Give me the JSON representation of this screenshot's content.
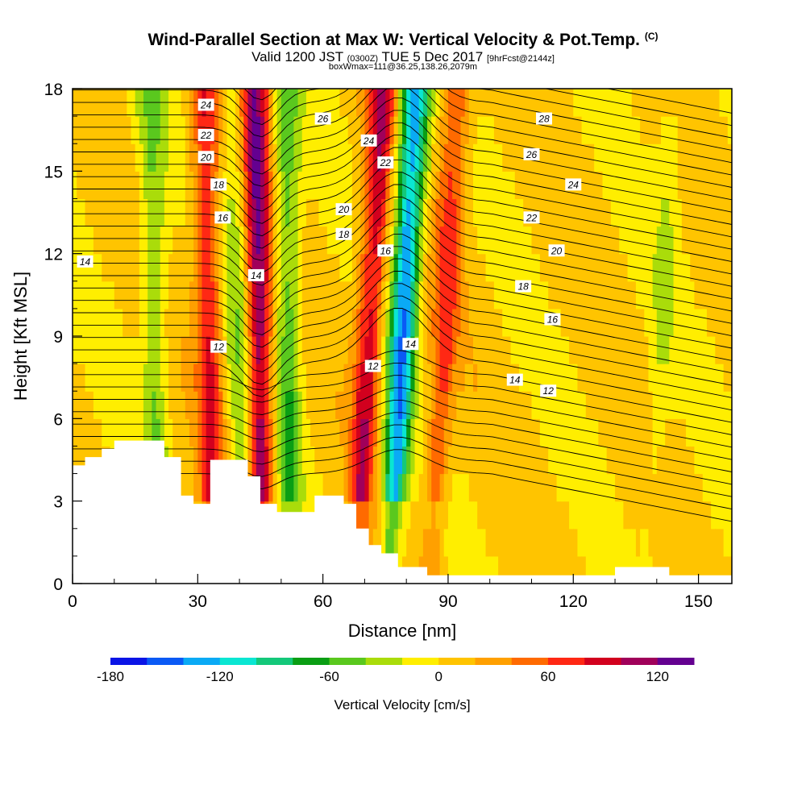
{
  "header": {
    "title": "Wind-Parallel Section at Max W: Vertical Velocity & Pot.Temp.",
    "copyright": "(C)",
    "subtitle_prefix": "Valid 1200 JST",
    "subtitle_utc": "(0300Z)",
    "subtitle_main": "TUE 5 Dec 2017",
    "subtitle_fcst": "[9hrFcst@2144z]",
    "subtitle2": "boxWmax=111@36.25,138.26,2079m"
  },
  "colorbar": {
    "label": "Vertical Velocity [cm/s]",
    "ticks": [
      {
        "value": -180,
        "label": "-180"
      },
      {
        "value": -120,
        "label": "-120"
      },
      {
        "value": -60,
        "label": "-60"
      },
      {
        "value": 0,
        "label": "0"
      },
      {
        "value": 60,
        "label": "60"
      },
      {
        "value": 120,
        "label": "120"
      }
    ],
    "levels": [
      -180,
      -160,
      -140,
      -120,
      -100,
      -80,
      -60,
      -40,
      -20,
      0,
      20,
      40,
      60,
      80,
      100,
      120,
      140
    ],
    "colors": [
      "#0a14e6",
      "#0a5af5",
      "#0aaaf5",
      "#0ae6d2",
      "#14c87a",
      "#0a9e14",
      "#5ac81e",
      "#aadc0a",
      "#ffee00",
      "#ffc400",
      "#ffa000",
      "#ff6a00",
      "#ff2814",
      "#d2001e",
      "#a0005a",
      "#640090"
    ]
  },
  "chart_data": {
    "type": "heatmap",
    "title": "Wind-Parallel Section at Max W: Vertical Velocity & Pot.Temp.",
    "xlabel": "Distance [nm]",
    "ylabel": "Height [Kft MSL]",
    "xlim": [
      0,
      158
    ],
    "ylim": [
      0,
      18
    ],
    "x_ticks": [
      0,
      30,
      60,
      90,
      120,
      150
    ],
    "y_ticks": [
      0,
      3,
      6,
      9,
      12,
      15,
      18
    ],
    "background_w": 5,
    "updrafts_downdrafts": [
      {
        "x": 45,
        "w": 115
      },
      {
        "x": 33,
        "w": 75
      },
      {
        "x": 52,
        "w": -60
      },
      {
        "x": 70,
        "w": 90
      },
      {
        "x": 78,
        "w": -140
      },
      {
        "x": 88,
        "w": 60
      },
      {
        "x": 20,
        "w": -45
      },
      {
        "x": 40,
        "w": -40
      },
      {
        "x": 140,
        "w": -20
      }
    ],
    "terrain_top_kft": [
      {
        "x": 0,
        "h": 4.3
      },
      {
        "x": 3,
        "h": 4.6
      },
      {
        "x": 7,
        "h": 4.9
      },
      {
        "x": 10,
        "h": 5.2
      },
      {
        "x": 22,
        "h": 4.6
      },
      {
        "x": 26,
        "h": 3.2
      },
      {
        "x": 29,
        "h": 2.9
      },
      {
        "x": 33,
        "h": 4.5
      },
      {
        "x": 42,
        "h": 3.9
      },
      {
        "x": 45,
        "h": 2.9
      },
      {
        "x": 49,
        "h": 2.6
      },
      {
        "x": 55,
        "h": 2.6
      },
      {
        "x": 58,
        "h": 3.2
      },
      {
        "x": 63,
        "h": 3.2
      },
      {
        "x": 65,
        "h": 2.9
      },
      {
        "x": 68,
        "h": 2.0
      },
      {
        "x": 71,
        "h": 1.4
      },
      {
        "x": 74,
        "h": 1.1
      },
      {
        "x": 78,
        "h": 0.6
      },
      {
        "x": 85,
        "h": 0.3
      },
      {
        "x": 100,
        "h": 0.3
      },
      {
        "x": 130,
        "h": 0.6
      },
      {
        "x": 143,
        "h": 0.3
      },
      {
        "x": 158,
        "h": 0.3
      }
    ],
    "theta_contours": [
      {
        "label": "12",
        "label_pos": [
          [
            35,
            8.6
          ],
          [
            72,
            7.9
          ],
          [
            114,
            7.0
          ]
        ]
      },
      {
        "label": "14",
        "label_pos": [
          [
            3,
            11.7
          ],
          [
            44,
            11.2
          ],
          [
            81,
            8.7
          ],
          [
            106,
            7.4
          ]
        ]
      },
      {
        "label": "16",
        "label_pos": [
          [
            36,
            13.3
          ],
          [
            75,
            12.1
          ],
          [
            115,
            9.6
          ]
        ]
      },
      {
        "label": "18",
        "label_pos": [
          [
            35,
            14.5
          ],
          [
            65,
            12.7
          ],
          [
            108,
            10.8
          ]
        ]
      },
      {
        "label": "20",
        "label_pos": [
          [
            32,
            15.5
          ],
          [
            65,
            13.6
          ],
          [
            116,
            12.1
          ]
        ]
      },
      {
        "label": "22",
        "label_pos": [
          [
            32,
            16.3
          ],
          [
            75,
            15.3
          ],
          [
            110,
            13.3
          ]
        ]
      },
      {
        "label": "24",
        "label_pos": [
          [
            32,
            17.4
          ],
          [
            71,
            16.1
          ],
          [
            120,
            14.5
          ]
        ]
      },
      {
        "label": "26",
        "label_pos": [
          [
            60,
            16.9
          ],
          [
            110,
            15.6
          ]
        ]
      },
      {
        "label": "28",
        "label_pos": [
          [
            113,
            16.9
          ]
        ]
      }
    ]
  }
}
